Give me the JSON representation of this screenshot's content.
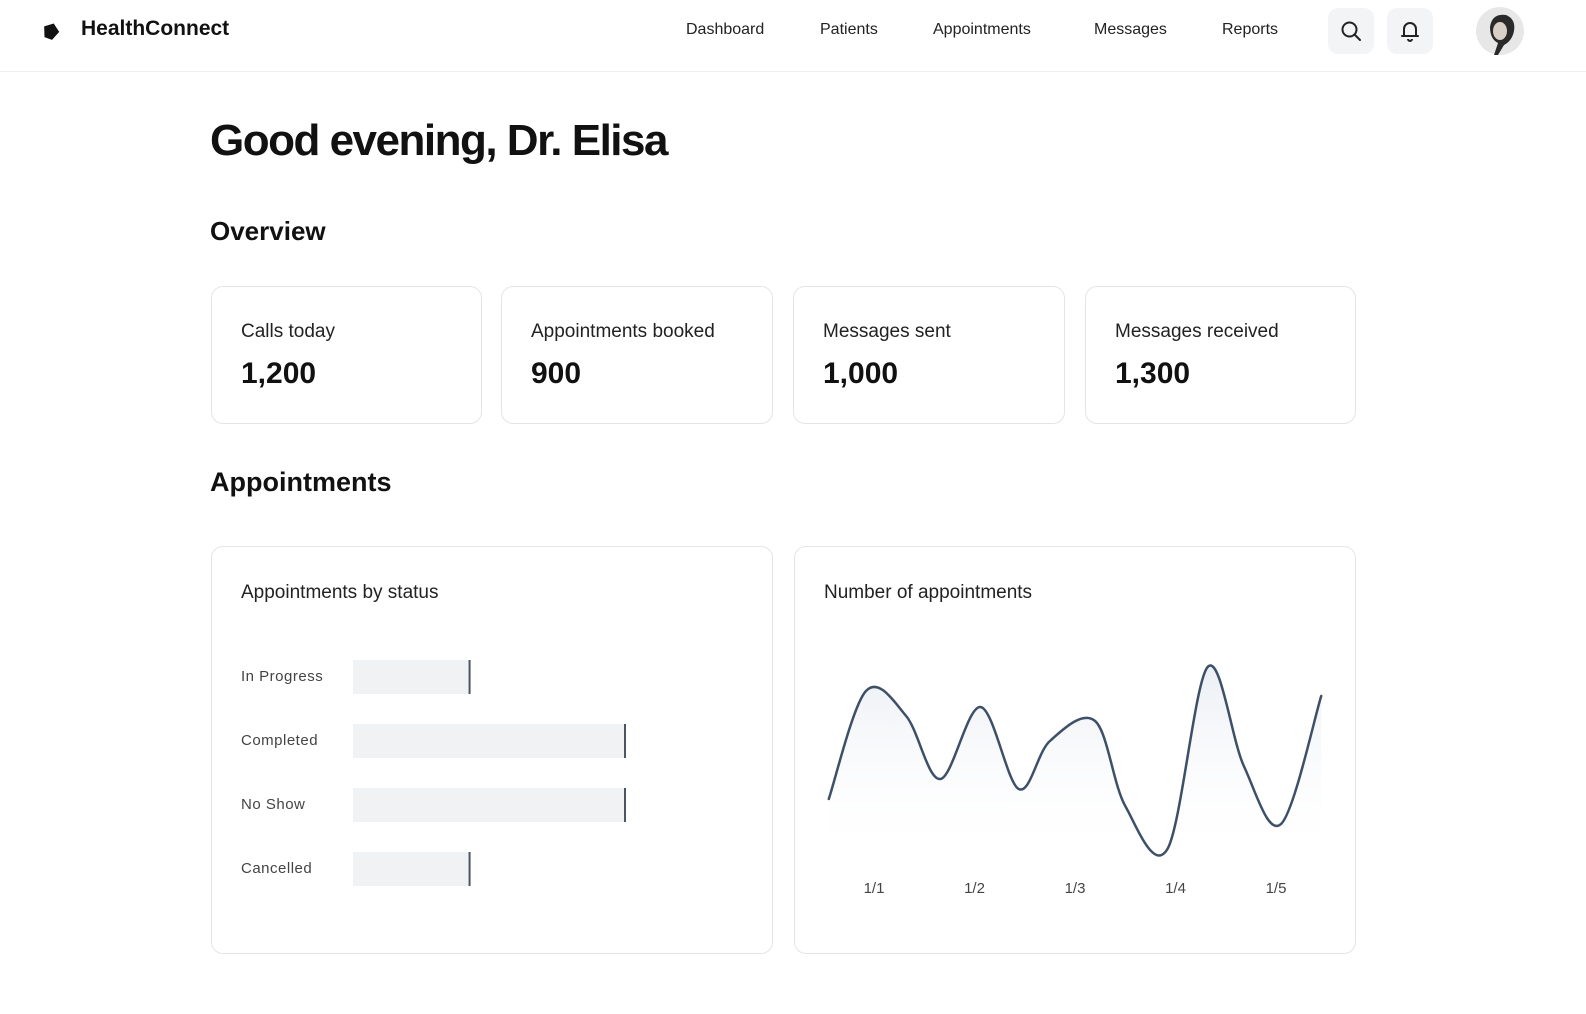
{
  "header": {
    "brand": "HealthConnect",
    "nav": [
      "Dashboard",
      "Patients",
      "Appointments",
      "Messages",
      "Reports"
    ]
  },
  "greeting": "Good evening, Dr. Elisa",
  "overview": {
    "title": "Overview",
    "cards": [
      {
        "label": "Calls today",
        "value": "1,200"
      },
      {
        "label": "Appointments booked",
        "value": "900"
      },
      {
        "label": "Messages sent",
        "value": "1,000"
      },
      {
        "label": "Messages received",
        "value": "1,300"
      }
    ]
  },
  "appointments": {
    "title": "Appointments"
  },
  "chart_data": [
    {
      "type": "bar",
      "title": "Appointments by status",
      "categories": [
        "In Progress",
        "Completed",
        "No Show",
        "Cancelled"
      ],
      "values": [
        3,
        7,
        7,
        3
      ],
      "orientation": "horizontal",
      "color": "#f1f2f4"
    },
    {
      "type": "line",
      "title": "Number of appointments",
      "x": [
        0.55,
        0.92,
        1.32,
        1.66,
        2.06,
        2.44,
        2.75,
        3.2,
        3.5,
        3.92,
        4.32,
        4.68,
        5.05,
        5.45
      ],
      "values": [
        6.2,
        17,
        14.5,
        8.2,
        15.4,
        7.2,
        12,
        14,
        5.5,
        1.2,
        19.4,
        9.5,
        3.7,
        16.5
      ],
      "xticks": [
        {
          "value": 1,
          "label": "1/1"
        },
        {
          "value": 2,
          "label": "1/2"
        },
        {
          "value": 3,
          "label": "1/3"
        },
        {
          "value": 4,
          "label": "1/4"
        },
        {
          "value": 5,
          "label": "1/5"
        }
      ],
      "color": "#3d5068"
    }
  ]
}
